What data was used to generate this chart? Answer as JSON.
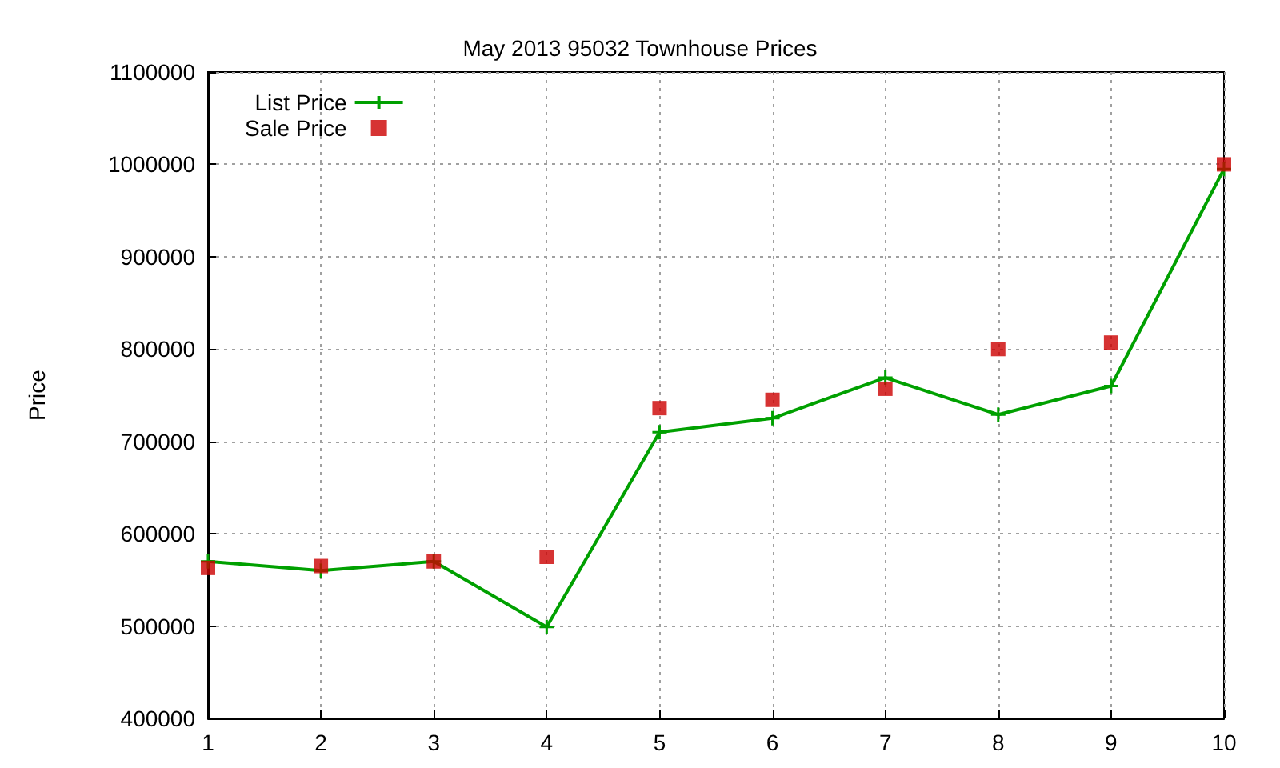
{
  "chart_data": {
    "type": "line",
    "title": "May 2013 95032 Townhouse Prices",
    "ylabel": "Price",
    "x": [
      1,
      2,
      3,
      4,
      5,
      6,
      7,
      8,
      9,
      10
    ],
    "series": [
      {
        "name": "List Price",
        "color": "#00a000",
        "marker": "cross",
        "values": [
          570000,
          560000,
          570000,
          499000,
          710000,
          725000,
          769000,
          729000,
          760000,
          995000
        ]
      },
      {
        "name": "Sale Price",
        "type": "scatter",
        "color": "#cc0000",
        "marker": "square",
        "values": [
          563000,
          565000,
          570000,
          575000,
          736000,
          745000,
          757000,
          800000,
          807000,
          1000000
        ]
      }
    ],
    "xlim": [
      1,
      10
    ],
    "xticks": [
      1,
      2,
      3,
      4,
      5,
      6,
      7,
      8,
      9,
      10
    ],
    "ylim": [
      400000,
      1100000
    ],
    "yticks": [
      400000,
      500000,
      600000,
      700000,
      800000,
      900000,
      1000000,
      1100000
    ],
    "grid": true,
    "legend": "top left"
  }
}
